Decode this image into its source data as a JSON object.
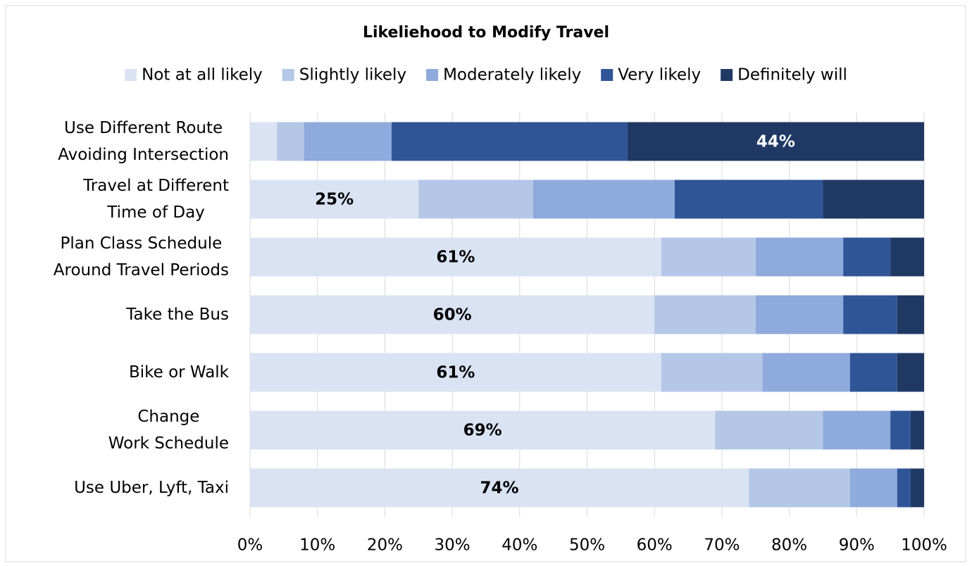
{
  "chart_data": {
    "type": "stacked-bar-horizontal",
    "title": "Likeliehood to Modify Travel",
    "categories": [
      [
        "Use Different Route",
        "Avoiding Intersection"
      ],
      [
        "Travel at Different",
        "Time of Day"
      ],
      [
        "Plan Class Schedule",
        "Around Travel Periods"
      ],
      [
        "Take the Bus"
      ],
      [
        "Bike or Walk"
      ],
      [
        "Change",
        "Work Schedule"
      ],
      [
        "Use Uber, Lyft, Taxi"
      ]
    ],
    "series": [
      {
        "name": "Not at all likely",
        "color": "#dae3f3",
        "values": [
          4,
          25,
          61,
          60,
          61,
          69,
          74
        ],
        "value_labels": [
          null,
          "25%",
          "61%",
          "60%",
          "61%",
          "69%",
          "74%"
        ]
      },
      {
        "name": "Slightly likely",
        "color": "#b4c7e7",
        "values": [
          4,
          17,
          14,
          15,
          15,
          16,
          15
        ]
      },
      {
        "name": "Moderately likely",
        "color": "#8faadc",
        "values": [
          13,
          21,
          13,
          13,
          13,
          10,
          7
        ]
      },
      {
        "name": "Very likely",
        "color": "#2f5597",
        "values": [
          35,
          22,
          7,
          8,
          7,
          3,
          2
        ]
      },
      {
        "name": "Definitely will",
        "color": "#203864",
        "values": [
          44,
          15,
          5,
          4,
          4,
          2,
          2
        ],
        "value_labels": [
          "44%",
          null,
          null,
          null,
          null,
          null,
          null
        ]
      }
    ],
    "xlim": [
      0,
      100
    ],
    "xticks": [
      {
        "value": 0,
        "label": "0%"
      },
      {
        "value": 10,
        "label": "10%"
      },
      {
        "value": 20,
        "label": "20%"
      },
      {
        "value": 30,
        "label": "30%"
      },
      {
        "value": 40,
        "label": "40%"
      },
      {
        "value": 50,
        "label": "50%"
      },
      {
        "value": 60,
        "label": "60%"
      },
      {
        "value": 70,
        "label": "70%"
      },
      {
        "value": 80,
        "label": "80%"
      },
      {
        "value": 90,
        "label": "90%"
      },
      {
        "value": 100,
        "label": "100%"
      }
    ],
    "grid": true,
    "legend": "top"
  }
}
